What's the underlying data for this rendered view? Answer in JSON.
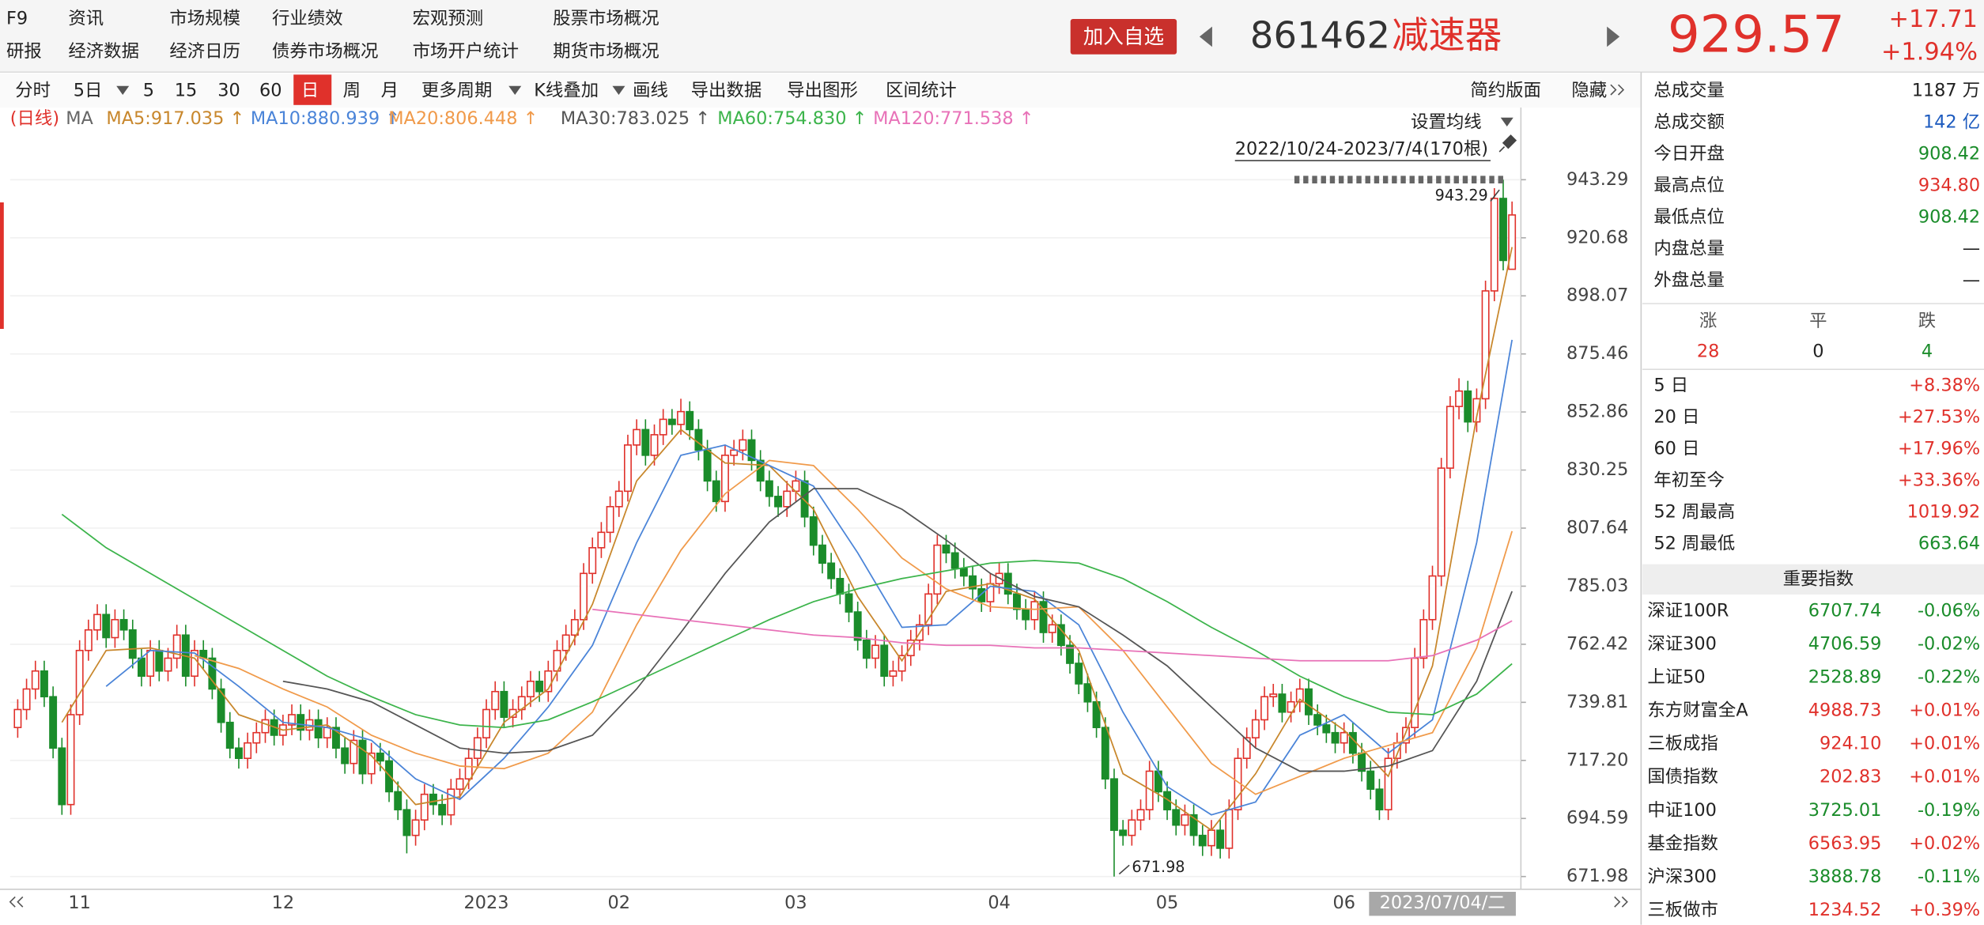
{
  "nav": [
    [
      "F9",
      "研报"
    ],
    [
      "资讯",
      "经济数据"
    ],
    [
      "市场规模",
      "经济日历"
    ],
    [
      "行业绩效",
      "债券市场概况"
    ],
    [
      "宏观预测",
      "市场开户统计"
    ],
    [
      "股票市场概况",
      "期货市场概况"
    ]
  ],
  "header": {
    "button": "加入自选",
    "code": "861462",
    "name": "减速器",
    "price": "929.57",
    "change": "+17.71",
    "change_pct": "+1.94%"
  },
  "toolbar": {
    "items": [
      "分时",
      "5日",
      "5",
      "15",
      "30",
      "60",
      "日",
      "周",
      "月",
      "更多周期",
      "K线叠加",
      "画线",
      "导出数据",
      "导出图形",
      "区间统计"
    ],
    "active": 6,
    "right": [
      "简约版面",
      "隐藏"
    ]
  },
  "chart_data": {
    "type": "candlestick",
    "period_label": "(日线)",
    "ma_label": "MA",
    "settings_label": "设置均线",
    "range_label": "2022/10/24-2023/7/4(170根)",
    "max_label": "943.29",
    "min_label": "671.98",
    "up_color": "#e0312b",
    "down_color": "#1a8c2a",
    "grid": true,
    "ylim": [
      668.5,
      971.4
    ],
    "yticks": [
      943.29,
      920.68,
      898.07,
      875.46,
      852.86,
      830.25,
      807.64,
      785.03,
      762.42,
      739.81,
      {
        "value": 717.2,
        "label": "717.20"
      },
      694.59,
      671.98
    ],
    "categories": [
      null,
      null,
      null,
      null,
      null,
      null,
      null,
      "11",
      null,
      null,
      null,
      null,
      null,
      null,
      null,
      null,
      null,
      null,
      null,
      null,
      null,
      null,
      null,
      null,
      null,
      null,
      null,
      null,
      null,
      null,
      "12",
      null,
      null,
      null,
      null,
      null,
      null,
      null,
      null,
      null,
      null,
      null,
      null,
      null,
      null,
      null,
      null,
      null,
      null,
      null,
      null,
      null,
      null,
      "2023",
      null,
      null,
      null,
      null,
      null,
      null,
      null,
      null,
      null,
      null,
      null,
      null,
      null,
      null,
      "02",
      null,
      null,
      null,
      null,
      null,
      null,
      null,
      null,
      null,
      null,
      null,
      null,
      null,
      null,
      null,
      null,
      null,
      null,
      null,
      "03",
      null,
      null,
      null,
      null,
      null,
      null,
      null,
      null,
      null,
      null,
      null,
      null,
      null,
      null,
      null,
      null,
      null,
      null,
      null,
      null,
      null,
      null,
      "04",
      null,
      null,
      null,
      null,
      null,
      null,
      null,
      null,
      null,
      null,
      null,
      null,
      null,
      null,
      null,
      null,
      null,
      null,
      "05",
      null,
      null,
      null,
      null,
      null,
      null,
      null,
      null,
      null,
      null,
      null,
      null,
      null,
      null,
      null,
      null,
      null,
      null,
      null,
      "06",
      null,
      null,
      null,
      null,
      null,
      null,
      null,
      null,
      null,
      null,
      null,
      null,
      null,
      null,
      null,
      null,
      null,
      null,
      "2023/07/04/二"
    ],
    "open": [
      730,
      737,
      745,
      752,
      742,
      722,
      700,
      735,
      760,
      768,
      774,
      765,
      772,
      768,
      757,
      750,
      760,
      752,
      757,
      766,
      750,
      760,
      757,
      745,
      732,
      722,
      718,
      724,
      728,
      733,
      727,
      731,
      735,
      729,
      733,
      726,
      730,
      722,
      716,
      725,
      712,
      720,
      717,
      705,
      698,
      688,
      694,
      704,
      700,
      696,
      706,
      710,
      718,
      726,
      737,
      744,
      734,
      737,
      742,
      748,
      744,
      752,
      760,
      766,
      772,
      790,
      800,
      806,
      816,
      822,
      840,
      846,
      836,
      844,
      850,
      848,
      853,
      846,
      838,
      826,
      818,
      836,
      838,
      842,
      834,
      826,
      820,
      816,
      822,
      826,
      812,
      801,
      794,
      788,
      782,
      775,
      764,
      757,
      762,
      750,
      752,
      758,
      764,
      770,
      782,
      801,
      798,
      792,
      789,
      784,
      779,
      786,
      790,
      782,
      776,
      772,
      779,
      767,
      770,
      762,
      755,
      747,
      740,
      730,
      710,
      690,
      688,
      694,
      698,
      713,
      705,
      698,
      692,
      696,
      688,
      684,
      690,
      683,
      698,
      718,
      726,
      733,
      742,
      743,
      736,
      740,
      745,
      735,
      731,
      728,
      724,
      728,
      720,
      713,
      706,
      698,
      718,
      724,
      730,
      757,
      772,
      789,
      831,
      855,
      861,
      849,
      858,
      900,
      936,
      908.42
    ],
    "high": [
      741,
      749,
      756,
      756,
      746,
      726,
      739,
      764,
      772,
      778,
      778,
      776,
      776,
      772,
      761,
      764,
      764,
      761,
      770,
      770,
      764,
      764,
      761,
      749,
      736,
      726,
      728,
      732,
      737,
      737,
      735,
      739,
      739,
      737,
      737,
      734,
      734,
      726,
      729,
      729,
      724,
      724,
      721,
      709,
      702,
      698,
      708,
      708,
      704,
      710,
      714,
      722,
      730,
      741,
      748,
      748,
      741,
      746,
      752,
      752,
      756,
      764,
      770,
      776,
      794,
      804,
      810,
      820,
      826,
      844,
      850,
      850,
      848,
      854,
      854,
      858,
      857,
      850,
      842,
      830,
      840,
      842,
      846,
      846,
      838,
      830,
      824,
      826,
      830,
      830,
      816,
      805,
      798,
      792,
      786,
      779,
      768,
      766,
      766,
      756,
      762,
      768,
      774,
      786,
      805,
      805,
      802,
      796,
      793,
      788,
      790,
      794,
      794,
      786,
      780,
      783,
      783,
      774,
      774,
      766,
      759,
      751,
      744,
      734,
      714,
      694,
      698,
      702,
      717,
      717,
      709,
      702,
      700,
      700,
      692,
      694,
      694,
      702,
      722,
      730,
      737,
      746,
      747,
      747,
      744,
      749,
      749,
      739,
      735,
      732,
      732,
      732,
      724,
      717,
      710,
      722,
      728,
      734,
      761,
      776,
      793,
      835,
      859,
      866,
      865,
      862,
      904,
      940,
      943.29,
      934.8
    ],
    "low": [
      726,
      733,
      741,
      738,
      718,
      696,
      696,
      731,
      756,
      764,
      761,
      761,
      764,
      753,
      746,
      746,
      748,
      748,
      753,
      746,
      746,
      753,
      741,
      728,
      718,
      714,
      714,
      720,
      724,
      723,
      723,
      727,
      725,
      725,
      722,
      722,
      718,
      712,
      712,
      708,
      708,
      713,
      701,
      694,
      681,
      684,
      690,
      696,
      692,
      692,
      702,
      706,
      714,
      722,
      733,
      730,
      730,
      733,
      738,
      740,
      740,
      748,
      756,
      762,
      768,
      786,
      796,
      802,
      812,
      818,
      836,
      832,
      832,
      840,
      844,
      844,
      842,
      834,
      822,
      814,
      814,
      832,
      834,
      830,
      822,
      816,
      812,
      812,
      818,
      808,
      797,
      790,
      784,
      778,
      771,
      760,
      753,
      753,
      746,
      746,
      748,
      754,
      760,
      766,
      778,
      794,
      788,
      785,
      780,
      775,
      775,
      782,
      778,
      772,
      768,
      768,
      763,
      763,
      758,
      751,
      743,
      736,
      726,
      706,
      671.98,
      684,
      684,
      690,
      694,
      701,
      694,
      688,
      688,
      684,
      680,
      680,
      679,
      679,
      694,
      714,
      722,
      729,
      738,
      732,
      732,
      736,
      731,
      727,
      724,
      720,
      720,
      716,
      709,
      702,
      694,
      694,
      714,
      720,
      726,
      753,
      768,
      785,
      827,
      850,
      845,
      845,
      854,
      896,
      908,
      908.42
    ],
    "close": [
      737,
      745,
      752,
      742,
      722,
      700,
      735,
      760,
      768,
      774,
      765,
      772,
      768,
      757,
      750,
      760,
      752,
      757,
      766,
      750,
      760,
      757,
      745,
      732,
      722,
      718,
      724,
      728,
      733,
      727,
      731,
      735,
      729,
      733,
      726,
      730,
      722,
      716,
      725,
      712,
      720,
      717,
      705,
      698,
      688,
      694,
      704,
      700,
      696,
      706,
      710,
      718,
      726,
      737,
      744,
      734,
      737,
      742,
      748,
      744,
      752,
      760,
      766,
      772,
      790,
      800,
      806,
      816,
      822,
      840,
      846,
      836,
      844,
      850,
      848,
      853,
      846,
      838,
      826,
      818,
      836,
      838,
      842,
      834,
      826,
      820,
      816,
      822,
      826,
      812,
      801,
      794,
      788,
      782,
      775,
      764,
      757,
      762,
      750,
      752,
      758,
      764,
      770,
      782,
      801,
      798,
      792,
      789,
      784,
      779,
      786,
      790,
      782,
      776,
      772,
      779,
      767,
      770,
      762,
      755,
      747,
      740,
      730,
      710,
      690,
      688,
      694,
      698,
      713,
      705,
      698,
      692,
      696,
      688,
      684,
      690,
      683,
      698,
      718,
      726,
      733,
      742,
      743,
      736,
      740,
      745,
      735,
      731,
      728,
      724,
      728,
      720,
      713,
      706,
      698,
      718,
      724,
      730,
      757,
      772,
      789,
      831,
      855,
      861,
      849,
      858,
      900,
      936,
      911.86,
      929.57
    ],
    "x": [
      0,
      5,
      10,
      15,
      20,
      25,
      30,
      35,
      40,
      45,
      50,
      55,
      60,
      65,
      70,
      75,
      80,
      85,
      90,
      95,
      100,
      105,
      110,
      115,
      120,
      125,
      130,
      135,
      140,
      145,
      150,
      155,
      160,
      165,
      169
    ],
    "series": [
      {
        "name": "MA5",
        "label": "MA5:917.035 ↑",
        "color": "#c8872c",
        "values": [
          null,
          732,
          760,
          761,
          757,
          735,
          729,
          731,
          719,
          700,
          703,
          732,
          745,
          778,
          826,
          846,
          833,
          832,
          815,
          781,
          756,
          783,
          786,
          780,
          760,
          712,
          702,
          690,
          712,
          741,
          729,
          711,
          754,
          851,
          917.035
        ]
      },
      {
        "name": "MA10",
        "label": "MA10:880.939 ↑",
        "color": "#4a84d8",
        "values": [
          null,
          null,
          746,
          760,
          759,
          746,
          732,
          730,
          725,
          710,
          702,
          718,
          738,
          762,
          802,
          836,
          840,
          832,
          824,
          798,
          769,
          770,
          785,
          783,
          770,
          736,
          707,
          696,
          701,
          727,
          735,
          720,
          733,
          802,
          880.939
        ]
      },
      {
        "name": "MA20",
        "label": "MA20:806.448 ↑",
        "color": "#f09a4a",
        "values": [
          null,
          null,
          null,
          null,
          758,
          753,
          745,
          738,
          727,
          720,
          715,
          714,
          720,
          736,
          770,
          799,
          821,
          834,
          832,
          815,
          796,
          784,
          777,
          776,
          777,
          760,
          738,
          716,
          704,
          711,
          718,
          723,
          728,
          761,
          806.448
        ]
      },
      {
        "name": "MA30",
        "label": "MA30:783.025 ↑",
        "color": "#555555",
        "values": [
          null,
          null,
          null,
          null,
          null,
          null,
          748,
          745,
          740,
          731,
          722,
          720,
          721,
          727,
          745,
          767,
          790,
          810,
          823,
          823,
          815,
          803,
          790,
          781,
          777,
          766,
          754,
          738,
          722,
          713,
          713,
          715,
          721,
          748,
          783.025
        ]
      },
      {
        "name": "MA60",
        "label": "MA60:754.830 ↑",
        "color": "#3cb44b",
        "values": [
          null,
          813,
          800,
          790,
          780,
          770,
          760,
          750,
          742,
          735,
          731,
          730,
          733,
          740,
          748,
          756,
          764,
          772,
          779,
          784,
          788,
          791,
          794,
          795,
          794,
          788,
          779,
          769,
          760,
          750,
          742,
          736,
          735,
          743,
          754.83
        ]
      },
      {
        "name": "MA120",
        "label": "MA120:771.538 ↑",
        "color": "#e872b8",
        "values": [
          null,
          null,
          null,
          null,
          null,
          null,
          null,
          null,
          null,
          null,
          null,
          null,
          null,
          776,
          774,
          772,
          770,
          768,
          766,
          765,
          763,
          762,
          762,
          761,
          761,
          760,
          759,
          758,
          757,
          756,
          756,
          756,
          758,
          764,
          771.538
        ]
      }
    ]
  },
  "stats": {
    "rows": [
      {
        "label": "总成交量",
        "value": "1187 万",
        "color": "#222222"
      },
      {
        "label": "总成交额",
        "value": "142 亿",
        "color": "#1d5bbf"
      },
      {
        "label": "今日开盘",
        "value": "908.42",
        "color": "#1a8c2a"
      },
      {
        "label": "最高点位",
        "value": "934.80",
        "color": "#e0312b"
      },
      {
        "label": "最低点位",
        "value": "908.42",
        "color": "#1a8c2a"
      },
      {
        "label": "内盘总量",
        "value": "—",
        "color": "#222222"
      },
      {
        "label": "外盘总量",
        "value": "—",
        "color": "#222222"
      }
    ],
    "updown": {
      "headers": [
        "涨",
        "平",
        "跌"
      ],
      "values": [
        "28",
        "0",
        "4"
      ],
      "colors": [
        "#e0312b",
        "#222222",
        "#1a8c2a"
      ]
    },
    "periods": [
      {
        "label": "5 日",
        "value": "+8.38%",
        "color": "#e0312b"
      },
      {
        "label": "20 日",
        "value": "+27.53%",
        "color": "#e0312b"
      },
      {
        "label": "60 日",
        "value": "+17.96%",
        "color": "#e0312b"
      },
      {
        "label": "年初至今",
        "value": "+33.36%",
        "color": "#e0312b"
      },
      {
        "label": "52 周最高",
        "value": "1019.92",
        "color": "#e0312b"
      },
      {
        "label": "52 周最低",
        "value": "663.64",
        "color": "#1a8c2a"
      }
    ]
  },
  "indices": {
    "title": "重要指数",
    "rows": [
      {
        "name": "深证100R",
        "value": "6707.74",
        "change": "-0.06%",
        "color": "#1a8c2a"
      },
      {
        "name": "深证300",
        "value": "4706.59",
        "change": "-0.02%",
        "color": "#1a8c2a"
      },
      {
        "name": "上证50",
        "value": "2528.89",
        "change": "-0.22%",
        "color": "#1a8c2a"
      },
      {
        "name": "东方财富全A",
        "value": "4988.73",
        "change": "+0.01%",
        "color": "#e0312b"
      },
      {
        "name": "三板成指",
        "value": "924.10",
        "change": "+0.01%",
        "color": "#e0312b"
      },
      {
        "name": "国债指数",
        "value": "202.83",
        "change": "+0.01%",
        "color": "#e0312b"
      },
      {
        "name": "中证100",
        "value": "3725.01",
        "change": "-0.19%",
        "color": "#1a8c2a"
      },
      {
        "name": "基金指数",
        "value": "6563.95",
        "change": "+0.02%",
        "color": "#e0312b"
      },
      {
        "name": "沪深300",
        "value": "3888.78",
        "change": "-0.11%",
        "color": "#1a8c2a"
      },
      {
        "name": "三板做市",
        "value": "1234.52",
        "change": "+0.39%",
        "color": "#e0312b"
      }
    ]
  }
}
